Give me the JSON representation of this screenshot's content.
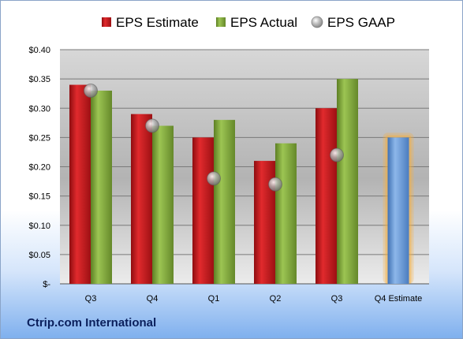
{
  "chart_data": {
    "type": "bar",
    "categories": [
      "Q3",
      "Q4",
      "Q1",
      "Q2",
      "Q3",
      "Q4 Estimate"
    ],
    "series": [
      {
        "name": "EPS Estimate",
        "values": [
          0.34,
          0.29,
          0.25,
          0.21,
          0.3,
          null
        ]
      },
      {
        "name": "EPS Actual",
        "values": [
          0.33,
          0.27,
          0.28,
          0.24,
          0.35,
          null
        ]
      },
      {
        "name": "EPS GAAP",
        "values": [
          0.33,
          0.27,
          0.18,
          0.17,
          0.22,
          null
        ]
      }
    ],
    "forecast": {
      "category": "Q4 Estimate",
      "value": 0.25
    },
    "y_ticks": [
      "$-",
      "$0.05",
      "$0.10",
      "$0.15",
      "$0.20",
      "$0.25",
      "$0.30",
      "$0.35",
      "$0.40"
    ],
    "ylim": [
      0,
      0.4
    ],
    "grid": true,
    "legend_position": "top",
    "colors": {
      "estimate": "#c8171c",
      "actual": "#86ae3c",
      "gaap": "#9a9a9a",
      "forecast": "#6b9bd8",
      "forecast_glow": "#f5b041"
    }
  },
  "company_name": "Ctrip.com International"
}
